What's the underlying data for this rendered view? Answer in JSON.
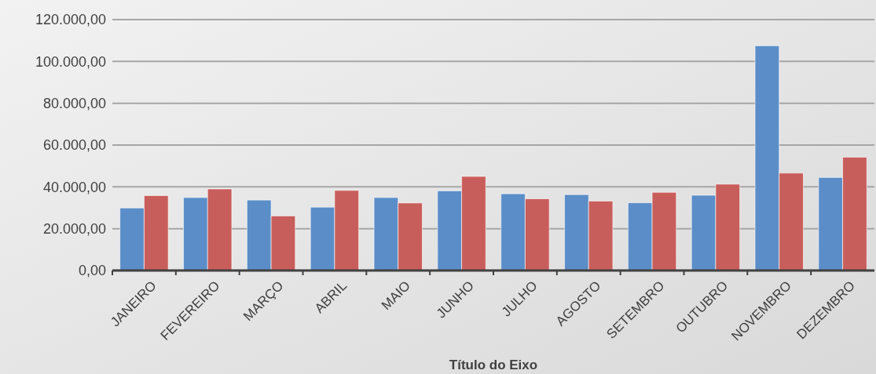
{
  "chart_data": {
    "type": "bar",
    "xlabel": "Título do Eixo",
    "categories": [
      "JANEIRO",
      "FEVEREIRO",
      "MARÇO",
      "ABRIL",
      "MAIO",
      "JUNHO",
      "JULHO",
      "AGOSTO",
      "SETEMBRO",
      "OUTUBRO",
      "NOVEMBRO",
      "DEZEMBRO"
    ],
    "series": [
      {
        "color": "#5b8ec8",
        "values": [
          29900,
          34900,
          33700,
          30300,
          34900,
          38100,
          36700,
          36300,
          32400,
          36000,
          107500,
          44500
        ]
      },
      {
        "color": "#c85e5b",
        "values": [
          35800,
          39000,
          26100,
          38300,
          32300,
          45000,
          34300,
          33200,
          37400,
          41300,
          46600,
          54200
        ]
      }
    ],
    "ylim": [
      0,
      120000
    ],
    "yticks": [
      {
        "value": 0,
        "label": "0,00"
      },
      {
        "value": 20000,
        "label": "20.000,00"
      },
      {
        "value": 40000,
        "label": "40.000,00"
      },
      {
        "value": 60000,
        "label": "60.000,00"
      },
      {
        "value": 80000,
        "label": "80.000,00"
      },
      {
        "value": 100000,
        "label": "100.000,00"
      },
      {
        "value": 120000,
        "label": "120.000,00"
      }
    ],
    "grid": "y"
  }
}
